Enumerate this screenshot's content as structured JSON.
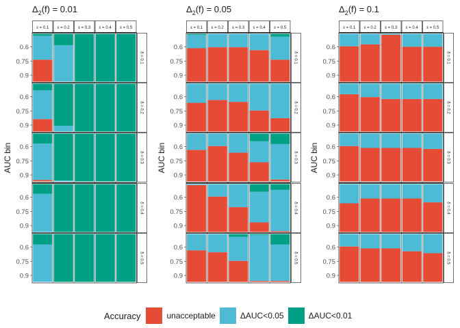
{
  "chart_data": {
    "type": "stacked-bar",
    "ylabel": "AUC bin",
    "y_tick_labels": [
      "0.6",
      "0.75",
      "0.9"
    ],
    "legend": {
      "title": "Accuracy",
      "placement": "bottom",
      "categories": [
        "unacceptable",
        "ΔAUC<0.05",
        "ΔAUC<0.01"
      ],
      "colors": [
        "#E64B35",
        "#4DBBD5",
        "#00A087"
      ]
    },
    "grid": false,
    "stack_order_top_to_bottom": [
      "ΔAUC<0.01",
      "ΔAUC<0.05",
      "unacceptable"
    ],
    "facets": [
      {
        "title_main": "Δ",
        "title_sub": "2",
        "title_rest": "(f) = 0.01",
        "columns": [
          "ε = 0.1",
          "ε = 0.2",
          "ε = 0.3",
          "ε = 0.4",
          "ε = 0.5"
        ],
        "rows": [
          {
            "label": "δ = 0.1",
            "cells": [
              [
                0.46,
                0.5,
                0.04
              ],
              [
                0,
                0.76,
                0.24
              ],
              [
                0,
                0,
                1
              ],
              [
                0,
                0,
                1
              ],
              [
                0,
                0,
                1
              ]
            ]
          },
          {
            "label": "δ = 0.2",
            "cells": [
              [
                0.26,
                0.6,
                0.14
              ],
              [
                0,
                0.12,
                0.88
              ],
              [
                0,
                0,
                1
              ],
              [
                0,
                0,
                1
              ],
              [
                0,
                0,
                1
              ]
            ]
          },
          {
            "label": "δ = 0.3",
            "cells": [
              [
                0.03,
                0.76,
                0.21
              ],
              [
                0,
                0.02,
                0.98
              ],
              [
                0,
                0,
                1
              ],
              [
                0,
                0,
                1
              ],
              [
                0,
                0,
                1
              ]
            ]
          },
          {
            "label": "δ = 0.4",
            "cells": [
              [
                0,
                0.8,
                0.2
              ],
              [
                0,
                0,
                1
              ],
              [
                0,
                0,
                1
              ],
              [
                0,
                0,
                1
              ],
              [
                0,
                0,
                1
              ]
            ]
          },
          {
            "label": "δ = 0.5",
            "cells": [
              [
                0,
                0.78,
                0.22
              ],
              [
                0,
                0,
                1
              ],
              [
                0,
                0,
                1
              ],
              [
                0,
                0,
                1
              ],
              [
                0,
                0,
                1
              ]
            ]
          }
        ]
      },
      {
        "title_main": "Δ",
        "title_sub": "2",
        "title_rest": "(f) = 0.05",
        "columns": [
          "ε = 0.1",
          "ε = 0.2",
          "ε = 0.3",
          "ε = 0.4",
          "ε = 0.5"
        ],
        "rows": [
          {
            "label": "δ = 0.1",
            "cells": [
              [
                0.7,
                0.28,
                0.02
              ],
              [
                0.72,
                0.28,
                0
              ],
              [
                0.72,
                0.28,
                0
              ],
              [
                0.66,
                0.34,
                0
              ],
              [
                0.46,
                0.48,
                0.06
              ]
            ]
          },
          {
            "label": "δ = 0.2",
            "cells": [
              [
                0.6,
                0.4,
                0
              ],
              [
                0.66,
                0.34,
                0
              ],
              [
                0.62,
                0.38,
                0
              ],
              [
                0.44,
                0.56,
                0
              ],
              [
                0.28,
                0.72,
                0
              ]
            ]
          },
          {
            "label": "δ = 0.3",
            "cells": [
              [
                0.66,
                0.34,
                0
              ],
              [
                0.74,
                0.26,
                0
              ],
              [
                0.6,
                0.4,
                0
              ],
              [
                0.4,
                0.44,
                0.16
              ],
              [
                0.04,
                0.74,
                0.22
              ]
            ]
          },
          {
            "label": "δ = 0.4",
            "cells": [
              [
                0.98,
                0.02,
                0
              ],
              [
                0.74,
                0.26,
                0
              ],
              [
                0.52,
                0.48,
                0
              ],
              [
                0.2,
                0.64,
                0.16
              ],
              [
                0.02,
                0.86,
                0.12
              ]
            ]
          },
          {
            "label": "δ = 0.5",
            "cells": [
              [
                0.66,
                0.34,
                0
              ],
              [
                0.62,
                0.38,
                0
              ],
              [
                0.44,
                0.5,
                0.06
              ],
              [
                0.02,
                0.96,
                0.02
              ],
              [
                0.02,
                0.76,
                0.22
              ]
            ]
          }
        ]
      },
      {
        "title_main": "Δ",
        "title_sub": "2",
        "title_rest": "(f) = 0.1",
        "columns": [
          "ε = 0.1",
          "ε = 0.2",
          "ε = 0.3",
          "ε = 0.4",
          "ε = 0.5"
        ],
        "rows": [
          {
            "label": "δ = 0.1",
            "cells": [
              [
                0.74,
                0.26,
                0
              ],
              [
                0.78,
                0.22,
                0
              ],
              [
                0.98,
                0.02,
                0
              ],
              [
                0.73,
                0.27,
                0
              ],
              [
                0.73,
                0.27,
                0
              ]
            ]
          },
          {
            "label": "δ = 0.2",
            "cells": [
              [
                0.78,
                0.22,
                0
              ],
              [
                0.72,
                0.28,
                0
              ],
              [
                0.68,
                0.32,
                0
              ],
              [
                0.68,
                0.32,
                0
              ],
              [
                0.68,
                0.32,
                0
              ]
            ]
          },
          {
            "label": "δ = 0.3",
            "cells": [
              [
                0.74,
                0.26,
                0
              ],
              [
                0.7,
                0.3,
                0
              ],
              [
                0.7,
                0.3,
                0
              ],
              [
                0.7,
                0.3,
                0
              ],
              [
                0.68,
                0.32,
                0
              ]
            ]
          },
          {
            "label": "δ = 0.4",
            "cells": [
              [
                0.6,
                0.4,
                0
              ],
              [
                0.7,
                0.3,
                0
              ],
              [
                0.7,
                0.3,
                0
              ],
              [
                0.7,
                0.3,
                0
              ],
              [
                0.62,
                0.38,
                0
              ]
            ]
          },
          {
            "label": "δ = 0.5",
            "cells": [
              [
                0.74,
                0.26,
                0
              ],
              [
                0.7,
                0.3,
                0
              ],
              [
                0.7,
                0.3,
                0
              ],
              [
                0.64,
                0.36,
                0
              ],
              [
                0.6,
                0.4,
                0
              ]
            ]
          }
        ]
      }
    ]
  }
}
